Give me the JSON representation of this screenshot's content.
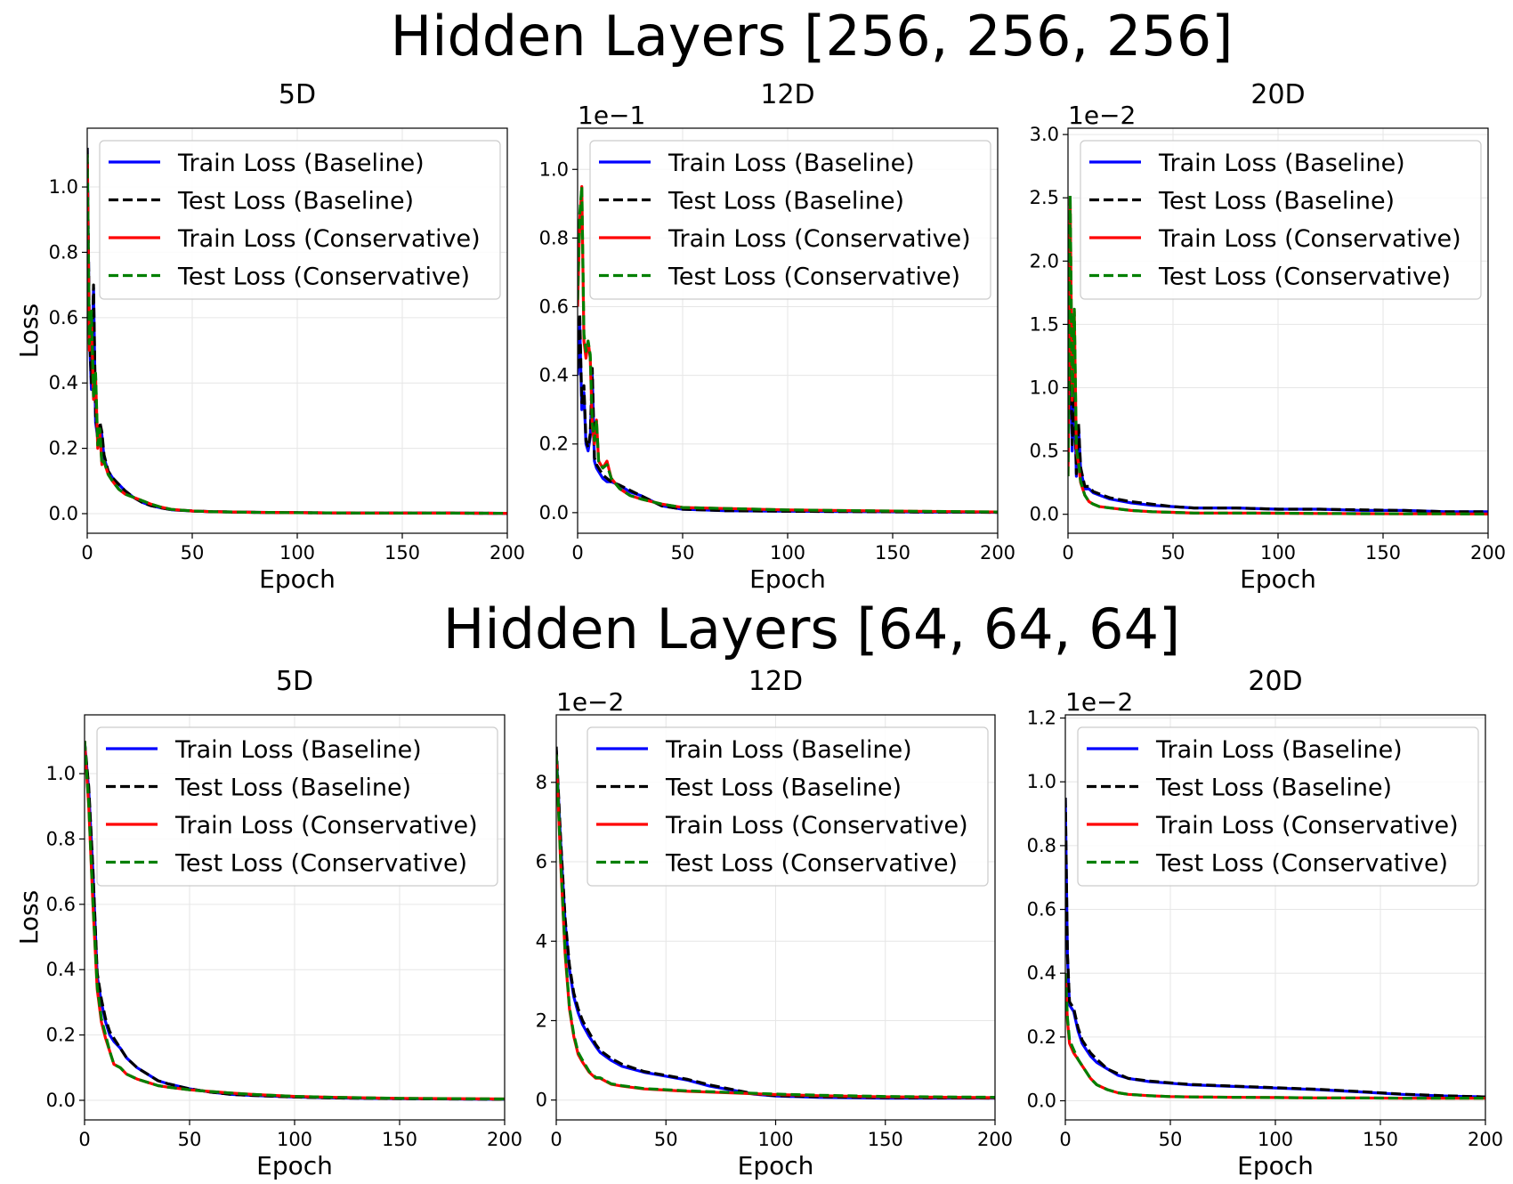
{
  "colors": {
    "train_baseline": "#0000ff",
    "test_baseline": "#000000",
    "train_conservative": "#ff0000",
    "test_conservative": "#008000",
    "grid": "#e6e6e6"
  },
  "legend_labels": [
    "Train Loss (Baseline)",
    "Test Loss (Baseline)",
    "Train Loss (Conservative)",
    "Test Loss (Conservative)"
  ],
  "rows": [
    {
      "title": "Hidden Layers [256, 256, 256]"
    },
    {
      "title": "Hidden Layers [64, 64, 64]"
    }
  ],
  "chart_data": [
    {
      "type": "line",
      "row": 0,
      "col": 0,
      "title": "5D",
      "xlabel": "Epoch",
      "ylabel": "Loss",
      "offset_label": "",
      "xlim": [
        0,
        200
      ],
      "ylim": [
        -0.06,
        1.18
      ],
      "xticks": [
        0,
        50,
        100,
        150,
        200
      ],
      "xtick_labels": [
        "0",
        "50",
        "100",
        "150",
        "200"
      ],
      "yticks": [
        0.0,
        0.2,
        0.4,
        0.6,
        0.8,
        1.0
      ],
      "ytick_labels": [
        "0.0",
        "0.2",
        "0.4",
        "0.6",
        "0.8",
        "1.0"
      ],
      "grid": true,
      "legend": "upper right",
      "x": [
        0,
        1,
        2,
        3,
        4,
        5,
        6,
        7,
        8,
        10,
        12,
        15,
        18,
        22,
        26,
        30,
        35,
        40,
        50,
        60,
        80,
        100,
        130,
        160,
        200
      ],
      "series": [
        {
          "name": "Train Loss (Baseline)",
          "style": "solid",
          "values": [
            1.12,
            0.55,
            0.38,
            0.69,
            0.28,
            0.23,
            0.27,
            0.24,
            0.17,
            0.13,
            0.11,
            0.09,
            0.07,
            0.05,
            0.035,
            0.025,
            0.018,
            0.012,
            0.008,
            0.006,
            0.004,
            0.003,
            0.002,
            0.002,
            0.001
          ]
        },
        {
          "name": "Test Loss (Baseline)",
          "style": "dashed",
          "values": [
            1.12,
            0.57,
            0.4,
            0.7,
            0.3,
            0.24,
            0.28,
            0.25,
            0.18,
            0.13,
            0.11,
            0.09,
            0.07,
            0.05,
            0.035,
            0.025,
            0.018,
            0.012,
            0.008,
            0.006,
            0.004,
            0.003,
            0.002,
            0.002,
            0.001
          ]
        },
        {
          "name": "Train Loss (Conservative)",
          "style": "solid",
          "values": [
            1.1,
            0.5,
            0.6,
            0.35,
            0.42,
            0.2,
            0.25,
            0.15,
            0.16,
            0.12,
            0.1,
            0.075,
            0.06,
            0.05,
            0.04,
            0.03,
            0.02,
            0.013,
            0.008,
            0.006,
            0.004,
            0.003,
            0.002,
            0.002,
            0.001
          ]
        },
        {
          "name": "Test Loss (Conservative)",
          "style": "dashed",
          "values": [
            1.1,
            0.52,
            0.62,
            0.36,
            0.43,
            0.21,
            0.26,
            0.15,
            0.16,
            0.12,
            0.1,
            0.075,
            0.06,
            0.05,
            0.04,
            0.03,
            0.02,
            0.013,
            0.008,
            0.006,
            0.004,
            0.003,
            0.002,
            0.002,
            0.001
          ]
        }
      ]
    },
    {
      "type": "line",
      "row": 0,
      "col": 1,
      "title": "12D",
      "xlabel": "Epoch",
      "ylabel": "",
      "offset_label": "1e−1",
      "xlim": [
        0,
        200
      ],
      "ylim": [
        -0.06,
        1.12
      ],
      "xticks": [
        0,
        50,
        100,
        150,
        200
      ],
      "xtick_labels": [
        "0",
        "50",
        "100",
        "150",
        "200"
      ],
      "yticks": [
        0.0,
        0.2,
        0.4,
        0.6,
        0.8,
        1.0
      ],
      "ytick_labels": [
        "0.0",
        "0.2",
        "0.4",
        "0.6",
        "0.8",
        "1.0"
      ],
      "grid": true,
      "legend": "upper right",
      "x": [
        0,
        1,
        2,
        3,
        4,
        5,
        6,
        7,
        8,
        9,
        10,
        12,
        14,
        16,
        20,
        25,
        30,
        40,
        50,
        70,
        100,
        130,
        160,
        200
      ],
      "series": [
        {
          "name": "Train Loss (Baseline)",
          "style": "solid",
          "values": [
            0.4,
            0.55,
            0.3,
            0.35,
            0.2,
            0.18,
            0.22,
            0.4,
            0.15,
            0.13,
            0.12,
            0.1,
            0.09,
            0.09,
            0.08,
            0.06,
            0.05,
            0.02,
            0.01,
            0.006,
            0.004,
            0.003,
            0.002,
            0.001
          ]
        },
        {
          "name": "Test Loss (Baseline)",
          "style": "dashed",
          "values": [
            0.42,
            0.58,
            0.32,
            0.37,
            0.21,
            0.19,
            0.23,
            0.42,
            0.16,
            0.14,
            0.13,
            0.11,
            0.1,
            0.09,
            0.08,
            0.065,
            0.05,
            0.02,
            0.01,
            0.006,
            0.004,
            0.003,
            0.002,
            0.001
          ]
        },
        {
          "name": "Train Loss (Conservative)",
          "style": "solid",
          "values": [
            0.6,
            0.85,
            0.95,
            0.5,
            0.45,
            0.5,
            0.45,
            0.25,
            0.2,
            0.27,
            0.15,
            0.13,
            0.15,
            0.1,
            0.07,
            0.05,
            0.04,
            0.025,
            0.015,
            0.012,
            0.008,
            0.006,
            0.004,
            0.002
          ]
        },
        {
          "name": "Test Loss (Conservative)",
          "style": "dashed",
          "values": [
            0.62,
            0.87,
            0.95,
            0.52,
            0.47,
            0.5,
            0.46,
            0.26,
            0.21,
            0.27,
            0.15,
            0.13,
            0.14,
            0.1,
            0.07,
            0.05,
            0.04,
            0.025,
            0.015,
            0.012,
            0.008,
            0.006,
            0.004,
            0.002
          ]
        }
      ]
    },
    {
      "type": "line",
      "row": 0,
      "col": 2,
      "title": "20D",
      "xlabel": "Epoch",
      "ylabel": "",
      "offset_label": "1e−2",
      "xlim": [
        0,
        200
      ],
      "ylim": [
        -0.15,
        3.05
      ],
      "xticks": [
        0,
        50,
        100,
        150,
        200
      ],
      "xtick_labels": [
        "0",
        "50",
        "100",
        "150",
        "200"
      ],
      "yticks": [
        0.0,
        0.5,
        1.0,
        1.5,
        2.0,
        2.5,
        3.0
      ],
      "ytick_labels": [
        "0.0",
        "0.5",
        "1.0",
        "1.5",
        "2.0",
        "2.5",
        "3.0"
      ],
      "grid": true,
      "legend": "upper right",
      "x": [
        0,
        1,
        2,
        3,
        4,
        5,
        6,
        8,
        10,
        12,
        15,
        20,
        30,
        40,
        50,
        60,
        80,
        100,
        120,
        140,
        160,
        180,
        200
      ],
      "series": [
        {
          "name": "Train Loss (Baseline)",
          "style": "solid",
          "values": [
            0.4,
            1.6,
            0.5,
            1.0,
            0.3,
            0.7,
            0.35,
            0.2,
            0.2,
            0.17,
            0.15,
            0.12,
            0.09,
            0.07,
            0.06,
            0.05,
            0.05,
            0.04,
            0.04,
            0.03,
            0.03,
            0.02,
            0.02
          ]
        },
        {
          "name": "Test Loss (Baseline)",
          "style": "dashed",
          "values": [
            0.45,
            1.65,
            0.55,
            1.05,
            0.32,
            0.72,
            0.37,
            0.22,
            0.22,
            0.18,
            0.16,
            0.13,
            0.1,
            0.08,
            0.06,
            0.05,
            0.05,
            0.04,
            0.04,
            0.035,
            0.03,
            0.02,
            0.02
          ]
        },
        {
          "name": "Train Loss (Conservative)",
          "style": "solid",
          "values": [
            0.3,
            2.5,
            0.9,
            1.6,
            0.5,
            0.4,
            0.25,
            0.15,
            0.1,
            0.08,
            0.06,
            0.05,
            0.03,
            0.02,
            0.015,
            0.01,
            0.01,
            0.008,
            0.006,
            0.005,
            0.004,
            0.003,
            0.002
          ]
        },
        {
          "name": "Test Loss (Conservative)",
          "style": "dashed",
          "values": [
            0.3,
            2.52,
            0.92,
            1.62,
            0.52,
            0.41,
            0.26,
            0.15,
            0.1,
            0.08,
            0.06,
            0.05,
            0.03,
            0.02,
            0.015,
            0.01,
            0.01,
            0.008,
            0.006,
            0.005,
            0.004,
            0.003,
            0.002
          ]
        }
      ]
    },
    {
      "type": "line",
      "row": 1,
      "col": 0,
      "title": "5D",
      "xlabel": "Epoch",
      "ylabel": "Loss",
      "offset_label": "",
      "xlim": [
        0,
        200
      ],
      "ylim": [
        -0.06,
        1.18
      ],
      "xticks": [
        0,
        50,
        100,
        150,
        200
      ],
      "xtick_labels": [
        "0",
        "50",
        "100",
        "150",
        "200"
      ],
      "yticks": [
        0.0,
        0.2,
        0.4,
        0.6,
        0.8,
        1.0
      ],
      "ytick_labels": [
        "0.0",
        "0.2",
        "0.4",
        "0.6",
        "0.8",
        "1.0"
      ],
      "grid": true,
      "legend": "upper right",
      "x": [
        0,
        2,
        4,
        6,
        8,
        10,
        12,
        14,
        17,
        20,
        25,
        30,
        35,
        40,
        50,
        60,
        70,
        80,
        100,
        120,
        150,
        200
      ],
      "series": [
        {
          "name": "Train Loss (Baseline)",
          "style": "solid",
          "values": [
            1.1,
            0.95,
            0.7,
            0.38,
            0.3,
            0.24,
            0.2,
            0.18,
            0.16,
            0.13,
            0.1,
            0.08,
            0.06,
            0.05,
            0.035,
            0.025,
            0.018,
            0.015,
            0.01,
            0.007,
            0.005,
            0.003
          ]
        },
        {
          "name": "Test Loss (Baseline)",
          "style": "dashed",
          "values": [
            1.1,
            0.96,
            0.71,
            0.39,
            0.31,
            0.25,
            0.21,
            0.19,
            0.16,
            0.13,
            0.1,
            0.08,
            0.06,
            0.05,
            0.035,
            0.025,
            0.018,
            0.015,
            0.01,
            0.007,
            0.005,
            0.003
          ]
        },
        {
          "name": "Train Loss (Conservative)",
          "style": "solid",
          "values": [
            1.1,
            0.9,
            0.6,
            0.34,
            0.24,
            0.19,
            0.15,
            0.11,
            0.1,
            0.08,
            0.065,
            0.055,
            0.045,
            0.04,
            0.032,
            0.027,
            0.022,
            0.018,
            0.012,
            0.009,
            0.006,
            0.004
          ]
        },
        {
          "name": "Test Loss (Conservative)",
          "style": "dashed",
          "values": [
            1.1,
            0.91,
            0.61,
            0.35,
            0.25,
            0.2,
            0.15,
            0.11,
            0.1,
            0.08,
            0.065,
            0.055,
            0.045,
            0.04,
            0.032,
            0.027,
            0.022,
            0.018,
            0.012,
            0.009,
            0.006,
            0.004
          ]
        }
      ]
    },
    {
      "type": "line",
      "row": 1,
      "col": 1,
      "title": "12D",
      "xlabel": "Epoch",
      "ylabel": "",
      "offset_label": "1e−2",
      "xlim": [
        0,
        200
      ],
      "ylim": [
        -0.5,
        9.7
      ],
      "xticks": [
        0,
        50,
        100,
        150,
        200
      ],
      "xtick_labels": [
        "0",
        "50",
        "100",
        "150",
        "200"
      ],
      "yticks": [
        0,
        2,
        4,
        6,
        8
      ],
      "ytick_labels": [
        "0",
        "2",
        "4",
        "6",
        "8"
      ],
      "grid": true,
      "legend": "upper right",
      "x": [
        0,
        2,
        4,
        6,
        8,
        10,
        12,
        15,
        18,
        20,
        25,
        30,
        40,
        50,
        60,
        70,
        80,
        90,
        100,
        120,
        150,
        200
      ],
      "series": [
        {
          "name": "Train Loss (Baseline)",
          "style": "solid",
          "values": [
            8.8,
            6.5,
            4.5,
            3.3,
            2.6,
            2.2,
            1.9,
            1.6,
            1.35,
            1.2,
            1.0,
            0.85,
            0.7,
            0.6,
            0.5,
            0.35,
            0.25,
            0.15,
            0.1,
            0.07,
            0.05,
            0.05
          ]
        },
        {
          "name": "Test Loss (Baseline)",
          "style": "dashed",
          "values": [
            8.9,
            6.6,
            4.6,
            3.4,
            2.7,
            2.3,
            2.0,
            1.7,
            1.4,
            1.25,
            1.05,
            0.9,
            0.72,
            0.62,
            0.52,
            0.38,
            0.27,
            0.16,
            0.11,
            0.08,
            0.06,
            0.05
          ]
        },
        {
          "name": "Train Loss (Conservative)",
          "style": "solid",
          "values": [
            8.7,
            6.0,
            3.7,
            2.3,
            1.6,
            1.15,
            0.95,
            0.7,
            0.55,
            0.55,
            0.4,
            0.35,
            0.28,
            0.25,
            0.22,
            0.2,
            0.18,
            0.16,
            0.14,
            0.11,
            0.08,
            0.06
          ]
        },
        {
          "name": "Test Loss (Conservative)",
          "style": "dashed",
          "values": [
            8.7,
            6.1,
            3.8,
            2.35,
            1.65,
            1.2,
            1.0,
            0.72,
            0.57,
            0.56,
            0.41,
            0.36,
            0.29,
            0.26,
            0.23,
            0.21,
            0.19,
            0.17,
            0.15,
            0.12,
            0.09,
            0.07
          ]
        }
      ]
    },
    {
      "type": "line",
      "row": 1,
      "col": 2,
      "title": "20D",
      "xlabel": "Epoch",
      "ylabel": "",
      "offset_label": "1e−2",
      "xlim": [
        0,
        200
      ],
      "ylim": [
        -0.06,
        1.21
      ],
      "xticks": [
        0,
        50,
        100,
        150,
        200
      ],
      "xtick_labels": [
        "0",
        "50",
        "100",
        "150",
        "200"
      ],
      "yticks": [
        0.0,
        0.2,
        0.4,
        0.6,
        0.8,
        1.0,
        1.2
      ],
      "ytick_labels": [
        "0.0",
        "0.2",
        "0.4",
        "0.6",
        "0.8",
        "1.0",
        "1.2"
      ],
      "grid": true,
      "legend": "upper right",
      "x": [
        0,
        1,
        2,
        4,
        6,
        8,
        10,
        12,
        15,
        20,
        25,
        30,
        40,
        50,
        60,
        80,
        100,
        120,
        140,
        160,
        180,
        200
      ],
      "series": [
        {
          "name": "Train Loss (Baseline)",
          "style": "solid",
          "values": [
            0.95,
            0.45,
            0.3,
            0.28,
            0.22,
            0.18,
            0.16,
            0.14,
            0.12,
            0.1,
            0.08,
            0.07,
            0.06,
            0.055,
            0.05,
            0.045,
            0.04,
            0.035,
            0.028,
            0.02,
            0.015,
            0.012
          ]
        },
        {
          "name": "Test Loss (Baseline)",
          "style": "dashed",
          "values": [
            0.95,
            0.46,
            0.31,
            0.29,
            0.23,
            0.19,
            0.17,
            0.15,
            0.13,
            0.1,
            0.085,
            0.07,
            0.062,
            0.056,
            0.051,
            0.046,
            0.041,
            0.036,
            0.029,
            0.021,
            0.016,
            0.012
          ]
        },
        {
          "name": "Train Loss (Conservative)",
          "style": "solid",
          "values": [
            0.4,
            0.25,
            0.18,
            0.15,
            0.13,
            0.11,
            0.09,
            0.07,
            0.05,
            0.035,
            0.025,
            0.02,
            0.016,
            0.013,
            0.012,
            0.011,
            0.01,
            0.009,
            0.009,
            0.008,
            0.008,
            0.008
          ]
        },
        {
          "name": "Test Loss (Conservative)",
          "style": "dashed",
          "values": [
            0.4,
            0.26,
            0.19,
            0.16,
            0.13,
            0.11,
            0.09,
            0.07,
            0.05,
            0.035,
            0.025,
            0.02,
            0.016,
            0.013,
            0.012,
            0.011,
            0.01,
            0.009,
            0.009,
            0.008,
            0.008,
            0.008
          ]
        }
      ]
    }
  ]
}
